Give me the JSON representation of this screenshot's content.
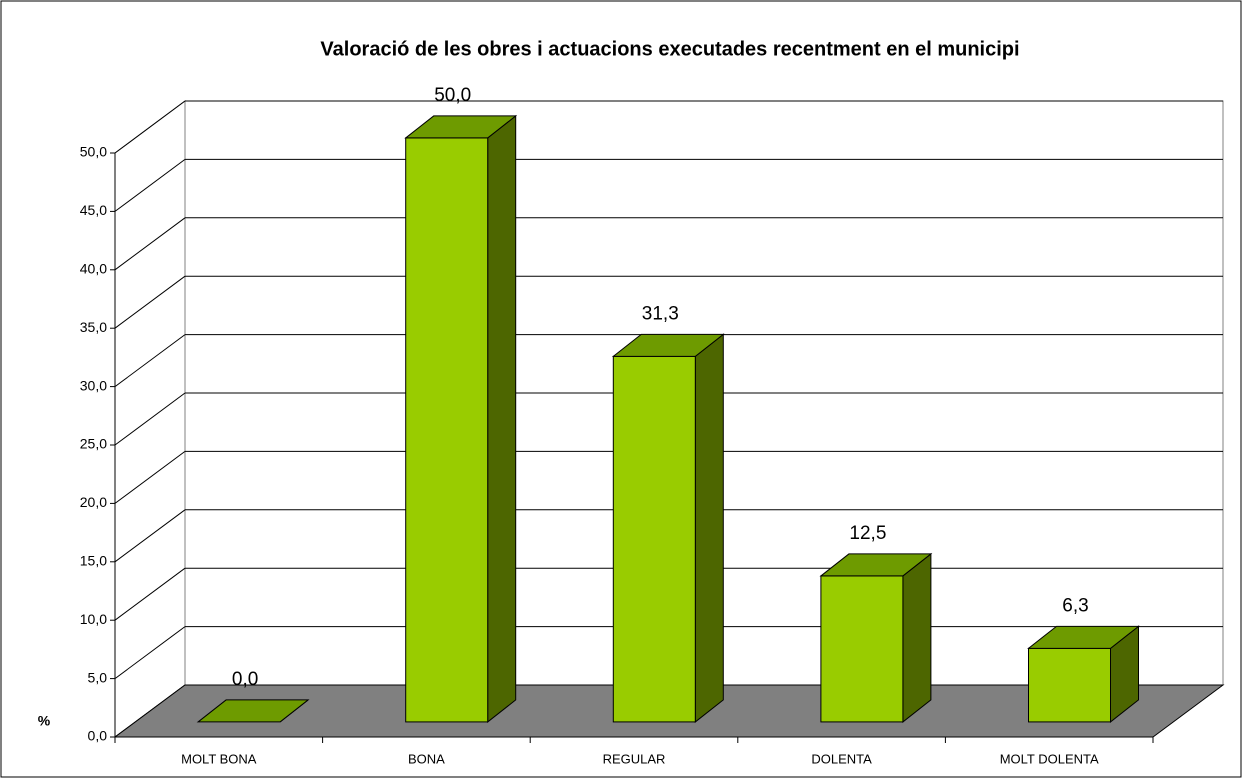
{
  "chart_data": {
    "type": "bar",
    "title": "Valoració de les obres i actuacions executades recentment en el municipi",
    "ylabel": "%",
    "categories": [
      "MOLT BONA",
      "BONA",
      "REGULAR",
      "DOLENTA",
      "MOLT DOLENTA"
    ],
    "values": [
      0.0,
      50.0,
      31.3,
      12.5,
      6.3
    ],
    "value_labels": [
      "0,0",
      "50,0",
      "31,3",
      "12,5",
      "6,3"
    ],
    "color": "#99cc00",
    "ylim": [
      0,
      50
    ],
    "yticks": [
      {
        "value": 0,
        "label": "0,0"
      },
      {
        "value": 5,
        "label": "5,0"
      },
      {
        "value": 10,
        "label": "10,0"
      },
      {
        "value": 15,
        "label": "15,0"
      },
      {
        "value": 20,
        "label": "20,0"
      },
      {
        "value": 25,
        "label": "25,0"
      },
      {
        "value": 30,
        "label": "30,0"
      },
      {
        "value": 35,
        "label": "35,0"
      },
      {
        "value": 40,
        "label": "40,0"
      },
      {
        "value": 45,
        "label": "45,0"
      },
      {
        "value": 50,
        "label": "50,0"
      }
    ],
    "grid": true
  }
}
